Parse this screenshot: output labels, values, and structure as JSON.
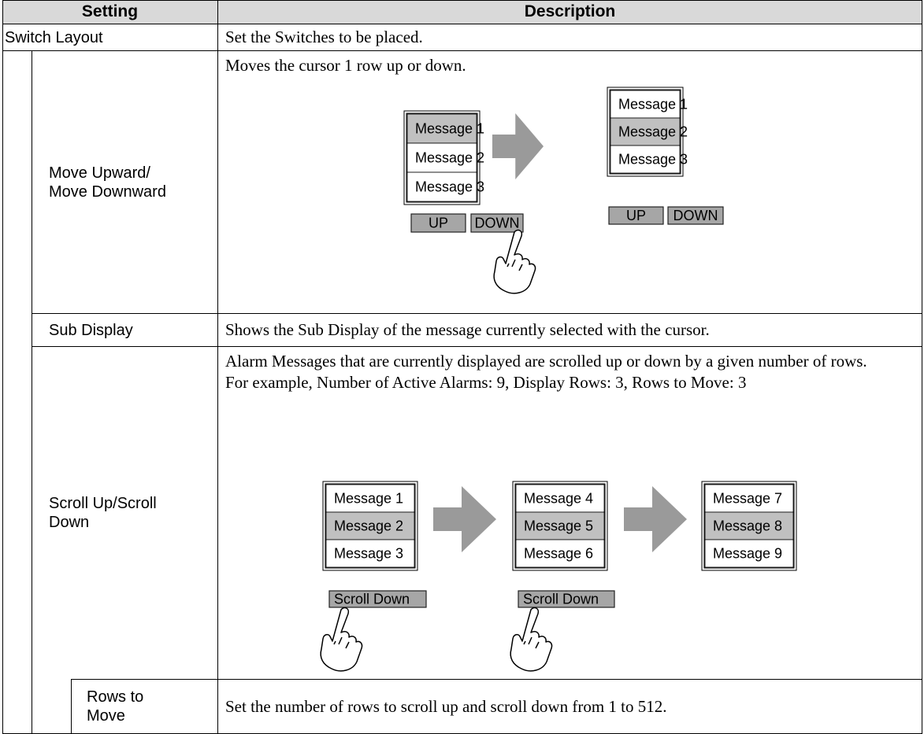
{
  "header": {
    "setting": "Setting",
    "description": "Description"
  },
  "rows": [
    {
      "setting": [
        "Switch Layout"
      ],
      "description": [
        "Set the Switches to be placed."
      ]
    },
    {
      "setting": [
        "Move Upward/",
        "Move Downward"
      ],
      "description": [
        "Moves the cursor 1 row up or down."
      ]
    },
    {
      "setting": [
        "Sub Display"
      ],
      "description": [
        "Shows the Sub Display of the message currently selected with the cursor."
      ]
    },
    {
      "setting": [
        "Scroll Up/Scroll",
        "Down"
      ],
      "description": [
        "Alarm Messages that are currently displayed are scrolled up or down by a given number of rows.",
        "For example, Number of Active Alarms: 9, Display Rows: 3, Rows to Move: 3"
      ]
    },
    {
      "setting": [
        "Rows to",
        "Move"
      ],
      "description": [
        "Set the number of rows to scroll up and scroll down from 1 to 512."
      ]
    }
  ],
  "move_example": {
    "lists": [
      [
        "Message 1",
        "Message 2",
        "Message 3"
      ],
      [
        "Message 1",
        "Message 2",
        "Message 3"
      ]
    ],
    "buttons": [
      "UP",
      "DOWN"
    ]
  },
  "scroll_example": {
    "lists": [
      [
        "Message 1",
        "Message 2",
        "Message 3"
      ],
      [
        "Message 4",
        "Message 5",
        "Message 6"
      ],
      [
        "Message 7",
        "Message 8",
        "Message 9"
      ]
    ],
    "button": "Scroll Down"
  }
}
